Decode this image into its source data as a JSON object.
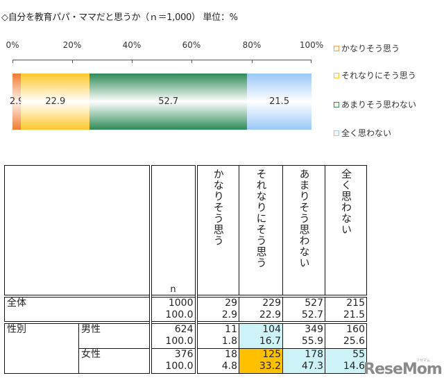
{
  "title": "◇自分を教育パパ・ママだと思うか（ｎ＝1,000） 単位：%",
  "chart_data": {
    "type": "bar",
    "orientation": "horizontal-stacked-100",
    "title": "自分を教育パパ・ママだと思うか（ｎ＝1,000） 単位：%",
    "x_ticks": [
      "0%",
      "20%",
      "40%",
      "60%",
      "80%",
      "100%"
    ],
    "xlim": [
      0,
      100
    ],
    "categories": [
      "全体"
    ],
    "series": [
      {
        "name": "かなりそう思う",
        "values": [
          2.9
        ],
        "color": "#f79646"
      },
      {
        "name": "それなりにそう思う",
        "values": [
          22.9
        ],
        "color": "#ffc000"
      },
      {
        "name": "あまりそう思わない",
        "values": [
          52.7
        ],
        "color": "#2e8b57"
      },
      {
        "name": "全く思わない",
        "values": [
          21.5
        ],
        "color": "#9dc3f5"
      }
    ],
    "legend_position": "right"
  },
  "segments": [
    {
      "label": "2.9",
      "value": 2.9,
      "edge": "#f07b30",
      "mid": "#fff4ee"
    },
    {
      "label": "22.9",
      "value": 22.9,
      "edge": "#ffc72c",
      "mid": "#ffffff"
    },
    {
      "label": "52.7",
      "value": 52.7,
      "edge": "#2e8b57",
      "mid": "#ffffff"
    },
    {
      "label": "21.5",
      "value": 21.5,
      "edge": "#99c8f7",
      "mid": "#ffffff"
    }
  ],
  "legend": [
    {
      "label": "かなりそう思う",
      "color": "#f0a050"
    },
    {
      "label": "それなりにそう思う",
      "color": "#f5c840"
    },
    {
      "label": "あまりそう思わない",
      "color": "#3a9060"
    },
    {
      "label": "全く思わない",
      "color": "#9dc8f0"
    }
  ],
  "table": {
    "n_header": "n",
    "columns": [
      "かなりそう思う",
      "それなりにそう思う",
      "あまりそう思わない",
      "全く思わない"
    ],
    "rows": {
      "total": {
        "label": "全体",
        "n": "1000",
        "n_pct": "100.0",
        "counts": [
          "29",
          "229",
          "527",
          "215"
        ],
        "pcts": [
          "2.9",
          "22.9",
          "52.7",
          "21.5"
        ]
      },
      "group_label": "性別",
      "male": {
        "label": "男性",
        "n": "624",
        "n_pct": "100.0",
        "counts": [
          "11",
          "104",
          "349",
          "160"
        ],
        "pcts": [
          "1.8",
          "16.7",
          "55.9",
          "25.6"
        ]
      },
      "female": {
        "label": "女性",
        "n": "376",
        "n_pct": "100.0",
        "counts": [
          "18",
          "125",
          "178",
          "55"
        ],
        "pcts": [
          "4.8",
          "33.2",
          "47.3",
          "14.6"
        ]
      }
    }
  },
  "watermark": {
    "logo": "ReseMom",
    "sub": "リセマム"
  }
}
